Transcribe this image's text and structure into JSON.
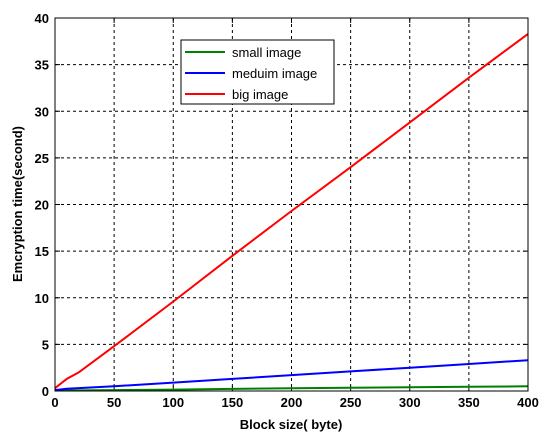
{
  "chart_data": {
    "type": "line",
    "title": "",
    "xlabel": "Block size( byte)",
    "ylabel": "Emcryption time(second)",
    "xlim": [
      0,
      400
    ],
    "ylim": [
      0,
      40
    ],
    "xticks": [
      0,
      50,
      100,
      150,
      200,
      250,
      300,
      350,
      400
    ],
    "yticks": [
      0,
      5,
      10,
      15,
      20,
      25,
      30,
      35,
      40
    ],
    "grid": true,
    "legend_position": "top-center",
    "series": [
      {
        "name": "small image",
        "color": "#008000",
        "x": [
          0,
          50,
          100,
          150,
          200,
          250,
          300,
          350,
          400
        ],
        "y": [
          0.05,
          0.1,
          0.15,
          0.22,
          0.3,
          0.35,
          0.4,
          0.45,
          0.5
        ]
      },
      {
        "name": "meduim image",
        "color": "#0000ff",
        "x": [
          0,
          10,
          50,
          100,
          150,
          200,
          250,
          300,
          350,
          400
        ],
        "y": [
          0.1,
          0.25,
          0.5,
          0.9,
          1.3,
          1.7,
          2.1,
          2.5,
          2.9,
          3.3
        ]
      },
      {
        "name": "big image",
        "color": "#ff0000",
        "x": [
          0,
          5,
          10,
          20,
          50,
          100,
          150,
          200,
          250,
          300,
          350,
          400
        ],
        "y": [
          0.3,
          0.8,
          1.3,
          2.0,
          4.8,
          9.6,
          14.5,
          19.3,
          24.0,
          28.8,
          33.6,
          38.3
        ]
      }
    ]
  }
}
